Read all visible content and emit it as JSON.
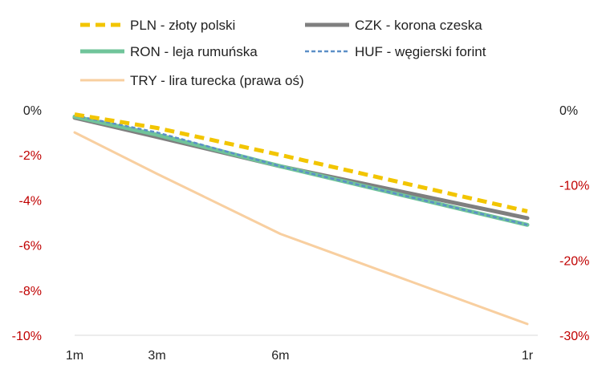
{
  "chart_data": {
    "type": "line",
    "x": [
      "1m",
      "3m",
      "6m",
      "1r"
    ],
    "x_positions_months": [
      1,
      3,
      6,
      12
    ],
    "y_left": {
      "ticks": [
        "0%",
        "-2%",
        "-4%",
        "-6%",
        "-8%",
        "-10%"
      ],
      "range": [
        -10,
        0
      ],
      "tick_color": "#222222",
      "negative_tick_color": "#c00000"
    },
    "y_right": {
      "ticks": [
        "0%",
        "-10%",
        "-20%",
        "-30%"
      ],
      "range": [
        -30,
        0
      ],
      "tick_color": "#222222",
      "negative_tick_color": "#c00000"
    },
    "series": [
      {
        "name": "PLN - złoty polski",
        "axis": "left",
        "color": "#f2c500",
        "style": "dashed-thick",
        "points": [
          [
            1,
            -0.2
          ],
          [
            3,
            -0.8
          ],
          [
            6,
            -2.0
          ],
          [
            12,
            -4.5
          ]
        ]
      },
      {
        "name": "CZK - korona czeska",
        "axis": "left",
        "color": "#7f7f7f",
        "style": "solid-thick",
        "points": [
          [
            1,
            -0.35
          ],
          [
            3,
            -1.2
          ],
          [
            6,
            -2.5
          ],
          [
            12,
            -4.8
          ]
        ]
      },
      {
        "name": "RON - leja rumuńska",
        "axis": "left",
        "color": "#70c49a",
        "style": "solid-thick",
        "points": [
          [
            1,
            -0.3
          ],
          [
            3,
            -1.1
          ],
          [
            6,
            -2.5
          ],
          [
            12,
            -5.1
          ]
        ]
      },
      {
        "name": "HUF - węgierski forint",
        "axis": "left",
        "color": "#5b8fc7",
        "style": "dashed-thin",
        "points": [
          [
            1,
            -0.25
          ],
          [
            3,
            -1.0
          ],
          [
            6,
            -2.5
          ],
          [
            12,
            -5.1
          ]
        ]
      },
      {
        "name": "TRY - lira turecka (prawa oś)",
        "axis": "right",
        "color": "#f8cfa0",
        "style": "solid-medium",
        "points": [
          [
            1,
            -3.0
          ],
          [
            3,
            -8.5
          ],
          [
            6,
            -16.5
          ],
          [
            9,
            -22.5
          ],
          [
            12,
            -28.5
          ]
        ]
      }
    ],
    "grid": false,
    "legend_position": "top"
  }
}
